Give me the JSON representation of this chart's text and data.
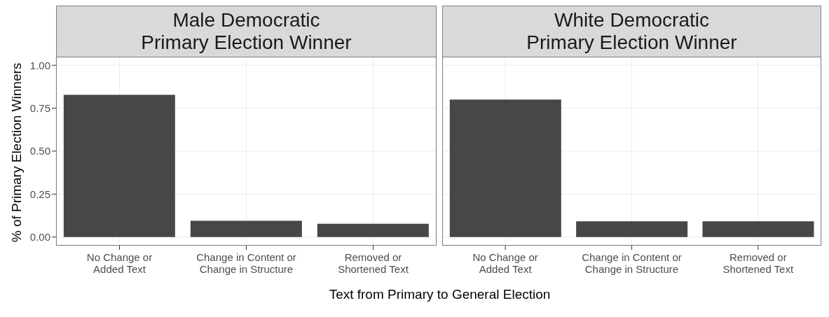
{
  "chart_data": [
    {
      "type": "bar",
      "title": "Male Democratic\nPrimary Election Winner",
      "xlabel": "Text from Primary to General Election",
      "ylabel": "% of Primary Election Winners",
      "categories": [
        "No Change or\nAdded Text",
        "Change in Content or\nChange in Structure",
        "Removed or\nShortened Text"
      ],
      "values": [
        0.828,
        0.095,
        0.077
      ],
      "color": "#474747",
      "ylim": [
        -0.05,
        1.05
      ],
      "yticks": [
        {
          "value": 0,
          "label": "0.00"
        },
        {
          "value": 0.25,
          "label": "0.25"
        },
        {
          "value": 0.5,
          "label": "0.50"
        },
        {
          "value": 0.75,
          "label": "0.75"
        },
        {
          "value": 1,
          "label": "1.00"
        }
      ],
      "grid": true
    },
    {
      "type": "bar",
      "title": "White Democratic\nPrimary Election Winner",
      "categories": [
        "No Change or\nAdded Text",
        "Change in Content or\nChange in Structure",
        "Removed or\nShortened Text"
      ],
      "values": [
        0.8,
        0.092,
        0.092
      ],
      "color": "#474747",
      "ylim": [
        -0.05,
        1.05
      ],
      "yticks": [
        0,
        0.25,
        0.5,
        0.75,
        1
      ],
      "tick_labels": "x",
      "grid": true
    }
  ]
}
